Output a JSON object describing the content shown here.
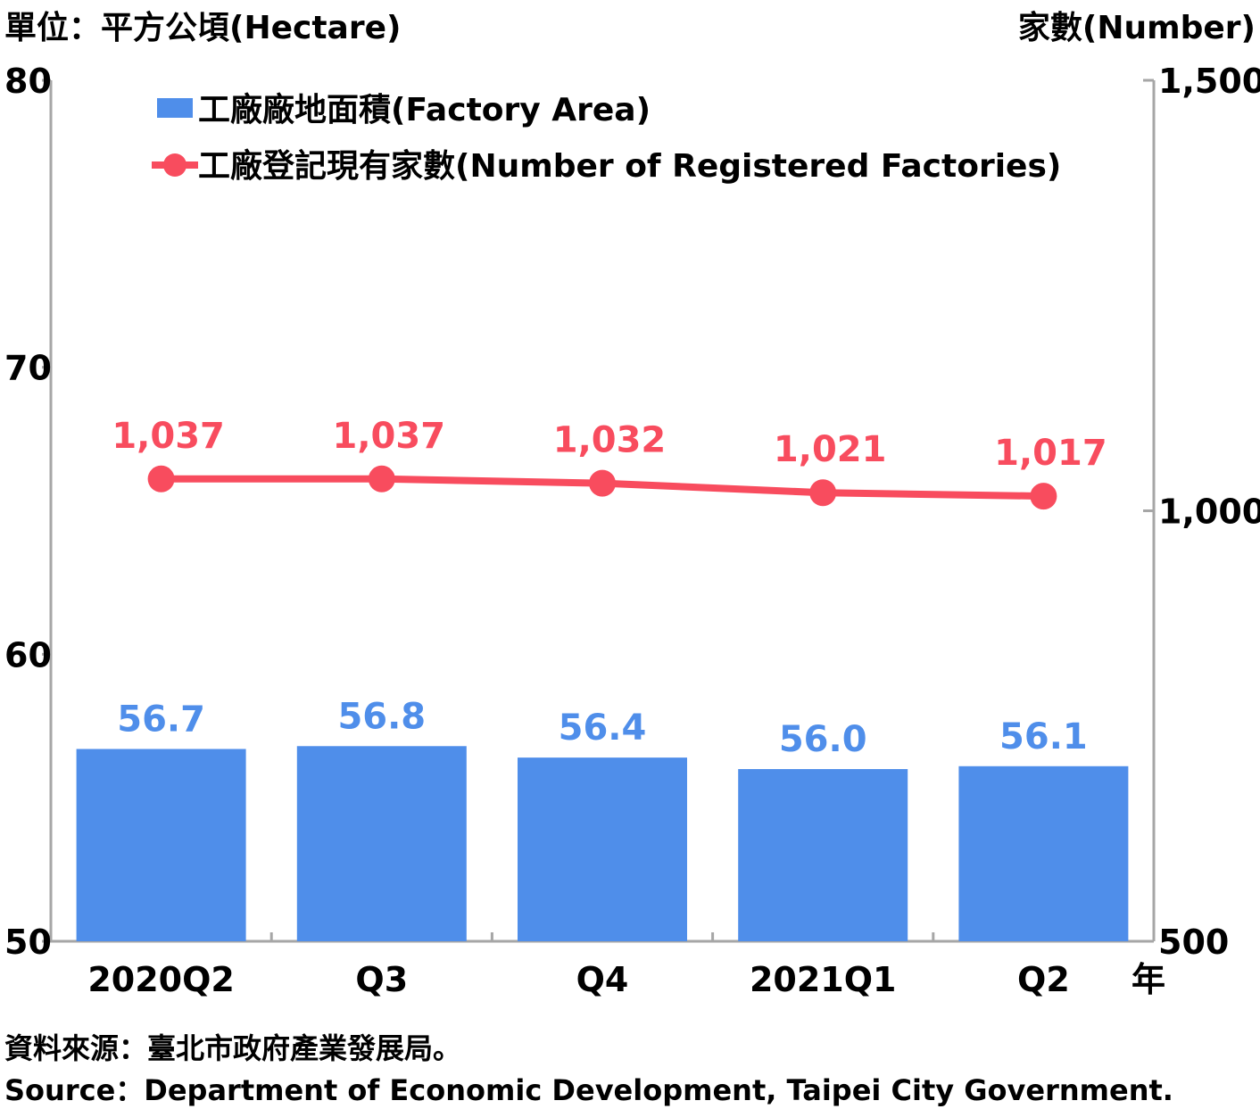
{
  "chart_data": {
    "type": "bar+line",
    "left_axis_unit": "單位：平方公頃(Hectare)",
    "right_axis_unit": "家數(Number)",
    "x_axis_suffix": "年",
    "categories": [
      "2020Q2",
      "Q3",
      "Q4",
      "2021Q1",
      "Q2"
    ],
    "left_axis": {
      "min": 50,
      "max": 80,
      "ticks": [
        50,
        60,
        70,
        80
      ]
    },
    "right_axis": {
      "min": 500,
      "max": 1500,
      "ticks": [
        500,
        1000,
        1500
      ],
      "tick_labels": [
        "500",
        "1,000",
        "1,500"
      ]
    },
    "series": [
      {
        "name": "工廠廠地面積(Factory Area)",
        "type": "bar",
        "axis": "left",
        "color": "#4F8EEA",
        "values": [
          56.7,
          56.8,
          56.4,
          56.0,
          56.1
        ],
        "labels": [
          "56.7",
          "56.8",
          "56.4",
          "56.0",
          "56.1"
        ]
      },
      {
        "name": "工廠登記現有家數(Number of Registered Factories)",
        "type": "line",
        "axis": "right",
        "color": "#F84C5E",
        "values": [
          1037,
          1037,
          1032,
          1021,
          1017
        ],
        "labels": [
          "1,037",
          "1,037",
          "1,032",
          "1,021",
          "1,017"
        ]
      }
    ],
    "legend": "top-left",
    "grid": false
  },
  "footer": {
    "source_zh": "資料來源：臺北市政府產業發展局。",
    "source_en": "Source：Department of Economic Development, Taipei City Government."
  }
}
